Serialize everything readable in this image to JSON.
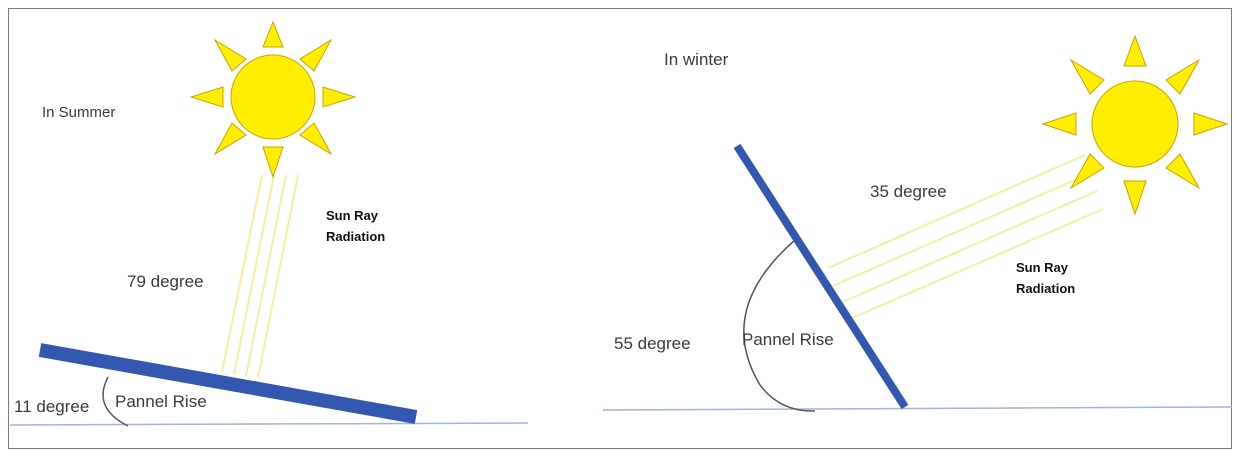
{
  "summer": {
    "season_label": "In Summer",
    "sun_angle_label": "79 degree",
    "ray_label_line1": "Sun Ray",
    "ray_label_line2": "Radiation",
    "tilt_label": "11 degree",
    "panel_label": "Pannel Rise"
  },
  "winter": {
    "season_label": "In winter",
    "sun_angle_label": "35 degree",
    "ray_label_line1": "Sun Ray",
    "ray_label_line2": "Radiation",
    "tilt_label": "55 degree",
    "panel_label": "Pannel Rise"
  },
  "colors": {
    "sun_fill": "#ffee00",
    "sun_stroke": "#c8a400",
    "ray": "#f4eea0",
    "panel": "#3358b0",
    "ground": "#9fb4d8",
    "arc": "#555555"
  }
}
